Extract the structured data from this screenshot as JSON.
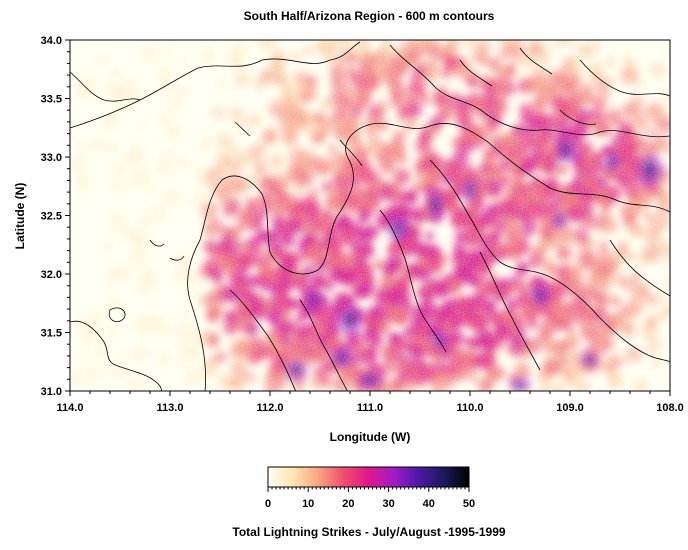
{
  "chart_data": {
    "type": "heatmap",
    "title": "South Half/Arizona Region - 600 m contours",
    "xlabel": "Longitude (W)",
    "ylabel": "Latitude (N)",
    "xlim": [
      114.0,
      108.0
    ],
    "ylim": [
      31.0,
      34.0
    ],
    "x_ticks": [
      "114.0",
      "113.0",
      "112.0",
      "111.0",
      "110.0",
      "109.0",
      "108.0"
    ],
    "y_ticks": [
      "31.0",
      "31.5",
      "32.0",
      "32.5",
      "33.0",
      "33.5",
      "34.0"
    ],
    "colorbar": {
      "title": "Total Lightning Strikes - July/August -1995-1999",
      "range": [
        0,
        50
      ],
      "ticks": [
        "0",
        "10",
        "20",
        "30",
        "40",
        "50"
      ],
      "colors": [
        "#fffff5",
        "#fde6b0",
        "#f7a680",
        "#ef4f6c",
        "#e0188a",
        "#a21bc9",
        "#4a1aa6",
        "#1a1a5a",
        "#000000"
      ]
    },
    "contour_interval": "600 m"
  }
}
